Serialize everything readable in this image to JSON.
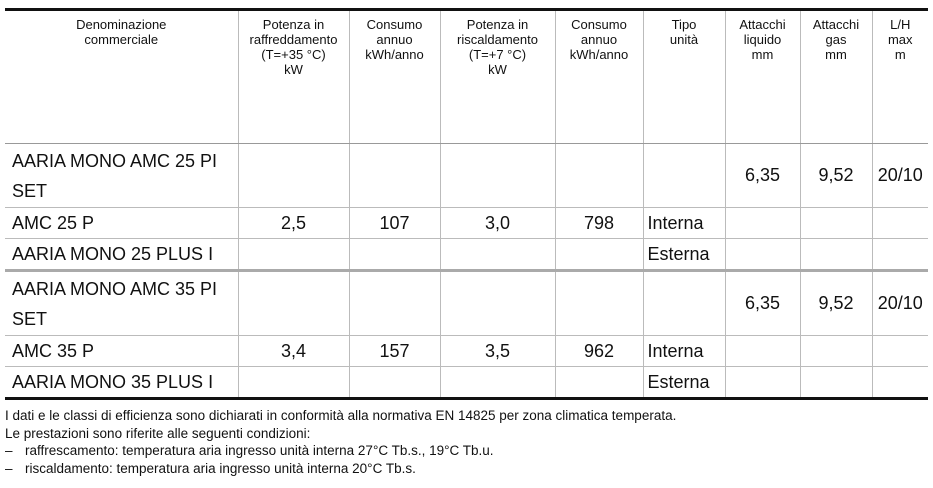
{
  "table": {
    "headers": [
      [
        "Denominazione",
        "commerciale"
      ],
      [
        "Potenza in",
        "raffreddamento",
        "(T=+35 °C)",
        "kW"
      ],
      [
        "Consumo",
        "annuo",
        "kWh/anno"
      ],
      [
        "Potenza in",
        "riscaldamento",
        "(T=+7 °C)",
        "kW"
      ],
      [
        "Consumo",
        "annuo",
        "kWh/anno"
      ],
      [
        "Tipo",
        "unità"
      ],
      [
        "Attacchi",
        "liquido",
        "mm"
      ],
      [
        "Attacchi",
        "gas",
        "mm"
      ],
      [
        "L/H",
        "max",
        "m"
      ]
    ],
    "rows": [
      {
        "name": "AARIA MONO AMC 25 PI SET",
        "liquid": "6,35",
        "gas": "9,52",
        "lh": "20/10"
      },
      {
        "name": "AMC 25 P",
        "cool": "2,5",
        "cool_kwh": "107",
        "heat": "3,0",
        "heat_kwh": "798",
        "unit": "Interna"
      },
      {
        "name": "AARIA MONO 25 PLUS I",
        "unit": "Esterna"
      },
      {
        "name": "AARIA MONO AMC 35 PI SET",
        "liquid": "6,35",
        "gas": "9,52",
        "lh": "20/10"
      },
      {
        "name": "AMC 35 P",
        "cool": "3,4",
        "cool_kwh": "157",
        "heat": "3,5",
        "heat_kwh": "962",
        "unit": "Interna"
      },
      {
        "name": "AARIA MONO 35 PLUS I",
        "unit": "Esterna"
      }
    ]
  },
  "notes": {
    "lines": [
      "I dati e le classi di efficienza sono dichiarati in conformità alla normativa EN 14825 per zona climatica temperata.",
      "Le prestazioni sono riferite alle seguenti condizioni:"
    ],
    "bullets": [
      "raffrescamento: temperatura aria ingresso unità interna 27°C Tb.s., 19°C Tb.u.",
      "riscaldamento: temperatura aria ingresso unità interna 20°C Tb.s."
    ]
  }
}
